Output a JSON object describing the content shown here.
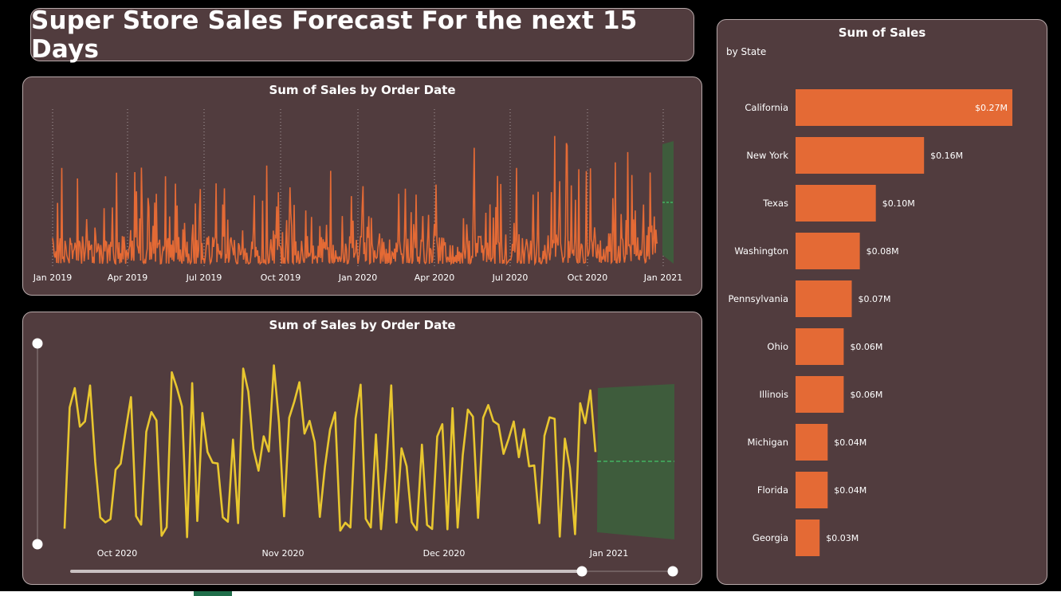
{
  "title": "Super Store Sales Forecast For the next 15 Days",
  "colors": {
    "background": "#000000",
    "panel": "#513c3e",
    "orange": "#e46a35",
    "yellow": "#e8c62f",
    "forecast": "#3e5c3c",
    "forecast_line": "#45c46a"
  },
  "chart_data": [
    {
      "type": "line",
      "title": "Sum of Sales by Order Date",
      "x_ticks": [
        "Jan 2019",
        "Apr 2019",
        "Jul 2019",
        "Oct 2019",
        "Jan 2020",
        "Apr 2020",
        "Jul 2020",
        "Oct 2020",
        "Jan 2021"
      ],
      "x_range": [
        "2019-01-01",
        "2021-01-15"
      ],
      "series": [
        {
          "color": "#e46a35",
          "period": "daily",
          "start": "2019-01-01",
          "end": "2020-12-30"
        }
      ],
      "forecast": {
        "start": "2020-12-31",
        "days": 15,
        "band_color": "#3e5c3c"
      }
    },
    {
      "type": "line",
      "title": "Sum of Sales by Order Date",
      "x_ticks": [
        "Oct 2020",
        "Nov 2020",
        "Dec 2020",
        "Jan 2021"
      ],
      "x_range": [
        "2020-09-17",
        "2021-01-15"
      ],
      "series": [
        {
          "color": "#e8c62f",
          "period": "daily",
          "start": "2020-09-17",
          "end": "2020-12-30"
        }
      ],
      "forecast": {
        "start": "2020-12-31",
        "days": 15,
        "band_color": "#3e5c3c"
      }
    },
    {
      "type": "bar",
      "orientation": "horizontal",
      "title": "Sum of Sales",
      "subtitle": "by State",
      "categories": [
        "California",
        "New York",
        "Texas",
        "Washington",
        "Pennsylvania",
        "Ohio",
        "Illinois",
        "Michigan",
        "Florida",
        "Georgia"
      ],
      "values": [
        0.27,
        0.16,
        0.1,
        0.08,
        0.07,
        0.06,
        0.06,
        0.04,
        0.04,
        0.03
      ],
      "value_labels": [
        "$0.27M",
        "$0.16M",
        "$0.10M",
        "$0.08M",
        "$0.07M",
        "$0.06M",
        "$0.06M",
        "$0.04M",
        "$0.04M",
        "$0.03M"
      ],
      "unit": "$M",
      "color": "#e46a35"
    }
  ]
}
